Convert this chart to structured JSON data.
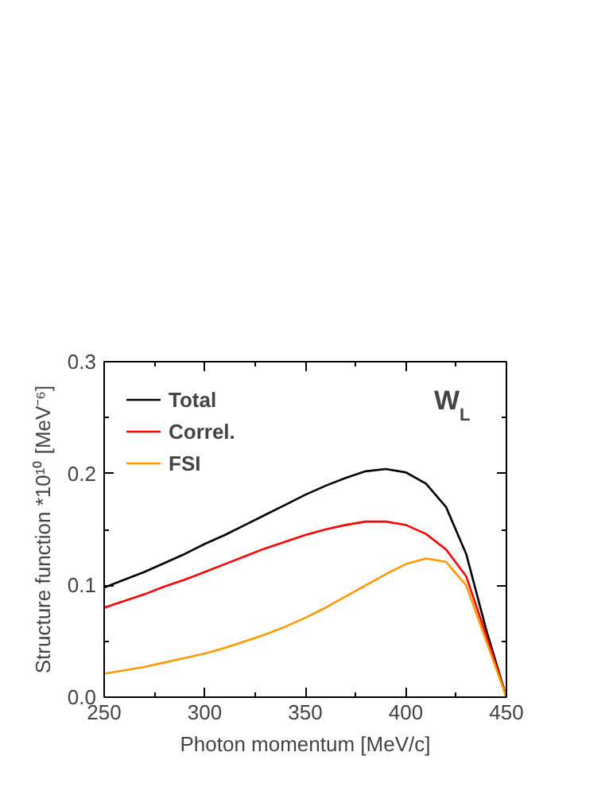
{
  "chart_data": {
    "type": "line",
    "xlabel": "Photon momentum [MeV/c]",
    "ylabel": "Structure function *10¹⁰ [MeV⁻⁶]",
    "annotations": [
      {
        "text": "W$_{L}$"
      }
    ],
    "x": [
      250,
      260,
      270,
      280,
      290,
      300,
      310,
      320,
      330,
      340,
      350,
      360,
      370,
      380,
      390,
      400,
      410,
      420,
      430,
      440,
      450
    ],
    "series": [
      {
        "name": "Total",
        "color": "#000000",
        "values": [
          0.098,
          0.105,
          0.112,
          0.12,
          0.128,
          0.137,
          0.145,
          0.154,
          0.163,
          0.172,
          0.181,
          0.189,
          0.196,
          0.202,
          0.204,
          0.201,
          0.191,
          0.17,
          0.128,
          0.06,
          0.0
        ]
      },
      {
        "name": "Correl.",
        "color": "#ff0000",
        "values": [
          0.08,
          0.086,
          0.092,
          0.099,
          0.105,
          0.112,
          0.119,
          0.126,
          0.133,
          0.139,
          0.145,
          0.15,
          0.154,
          0.157,
          0.157,
          0.154,
          0.146,
          0.132,
          0.108,
          0.055,
          0.0
        ]
      },
      {
        "name": "FSI",
        "color": "#ff9900",
        "values": [
          0.021,
          0.024,
          0.027,
          0.031,
          0.035,
          0.039,
          0.044,
          0.05,
          0.056,
          0.063,
          0.071,
          0.08,
          0.09,
          0.1,
          0.11,
          0.119,
          0.124,
          0.121,
          0.1,
          0.05,
          0.0
        ]
      }
    ],
    "xlim": [
      250,
      450
    ],
    "ylim": [
      0.0,
      0.3
    ],
    "xticks": [
      250,
      300,
      350,
      400,
      450
    ],
    "yticks": [
      {
        "value": 0.0,
        "label": "0.0"
      },
      {
        "value": 0.1,
        "label": "0.1"
      },
      {
        "value": 0.2,
        "label": "0.2"
      },
      {
        "value": 0.3,
        "label": "0.3"
      }
    ],
    "grid": false,
    "legend": "top left",
    "marker": "none",
    "line_style": "solid"
  }
}
